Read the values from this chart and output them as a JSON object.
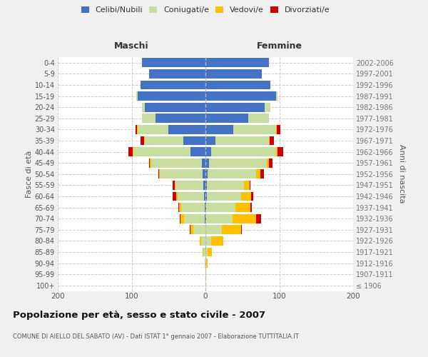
{
  "age_groups": [
    "100+",
    "95-99",
    "90-94",
    "85-89",
    "80-84",
    "75-79",
    "70-74",
    "65-69",
    "60-64",
    "55-59",
    "50-54",
    "45-49",
    "40-44",
    "35-39",
    "30-34",
    "25-29",
    "20-24",
    "15-19",
    "10-14",
    "5-9",
    "0-4"
  ],
  "birth_years": [
    "≤ 1906",
    "1907-1911",
    "1912-1916",
    "1917-1921",
    "1922-1926",
    "1927-1931",
    "1932-1936",
    "1937-1941",
    "1942-1946",
    "1947-1951",
    "1952-1956",
    "1957-1961",
    "1962-1966",
    "1967-1971",
    "1972-1976",
    "1977-1981",
    "1982-1986",
    "1987-1991",
    "1992-1996",
    "1997-2001",
    "2002-2006"
  ],
  "males": {
    "celibi": [
      0,
      0,
      0,
      0,
      0,
      0,
      1,
      1,
      2,
      3,
      4,
      5,
      20,
      30,
      50,
      68,
      82,
      92,
      88,
      76,
      86
    ],
    "coniugati": [
      0,
      0,
      1,
      3,
      6,
      16,
      28,
      32,
      36,
      38,
      58,
      68,
      78,
      52,
      42,
      18,
      4,
      2,
      0,
      0,
      0
    ],
    "vedovi": [
      0,
      0,
      0,
      1,
      2,
      4,
      5,
      3,
      2,
      1,
      1,
      2,
      1,
      1,
      1,
      0,
      0,
      0,
      0,
      0,
      0
    ],
    "divorziati": [
      0,
      0,
      0,
      0,
      0,
      1,
      1,
      1,
      4,
      2,
      1,
      1,
      5,
      5,
      2,
      0,
      0,
      0,
      0,
      0,
      0
    ]
  },
  "females": {
    "nubili": [
      0,
      0,
      0,
      0,
      0,
      0,
      1,
      1,
      2,
      2,
      3,
      5,
      8,
      14,
      38,
      58,
      80,
      96,
      88,
      76,
      86
    ],
    "coniugate": [
      0,
      0,
      1,
      3,
      8,
      22,
      36,
      40,
      46,
      50,
      66,
      78,
      88,
      72,
      58,
      28,
      8,
      2,
      0,
      0,
      0
    ],
    "vedove": [
      0,
      1,
      2,
      6,
      16,
      26,
      32,
      20,
      14,
      8,
      5,
      3,
      2,
      1,
      1,
      0,
      0,
      0,
      0,
      0,
      0
    ],
    "divorziate": [
      0,
      0,
      0,
      0,
      0,
      1,
      6,
      2,
      3,
      1,
      5,
      5,
      7,
      6,
      4,
      0,
      0,
      0,
      0,
      0,
      0
    ]
  },
  "color_celibi": "#4472c4",
  "color_coniugati": "#c8dda0",
  "color_vedovi": "#ffc000",
  "color_divorziati": "#cc0000",
  "xlim": 200,
  "title": "Popolazione per età, sesso e stato civile - 2007",
  "subtitle": "COMUNE DI AIELLO DEL SABATO (AV) - Dati ISTAT 1° gennaio 2007 - Elaborazione TUTTITALIA.IT",
  "ylabel_left": "Fasce di età",
  "ylabel_right": "Anni di nascita",
  "header_left": "Maschi",
  "header_right": "Femmine",
  "bg_color": "#f0f0f0",
  "plot_bg": "#ffffff"
}
